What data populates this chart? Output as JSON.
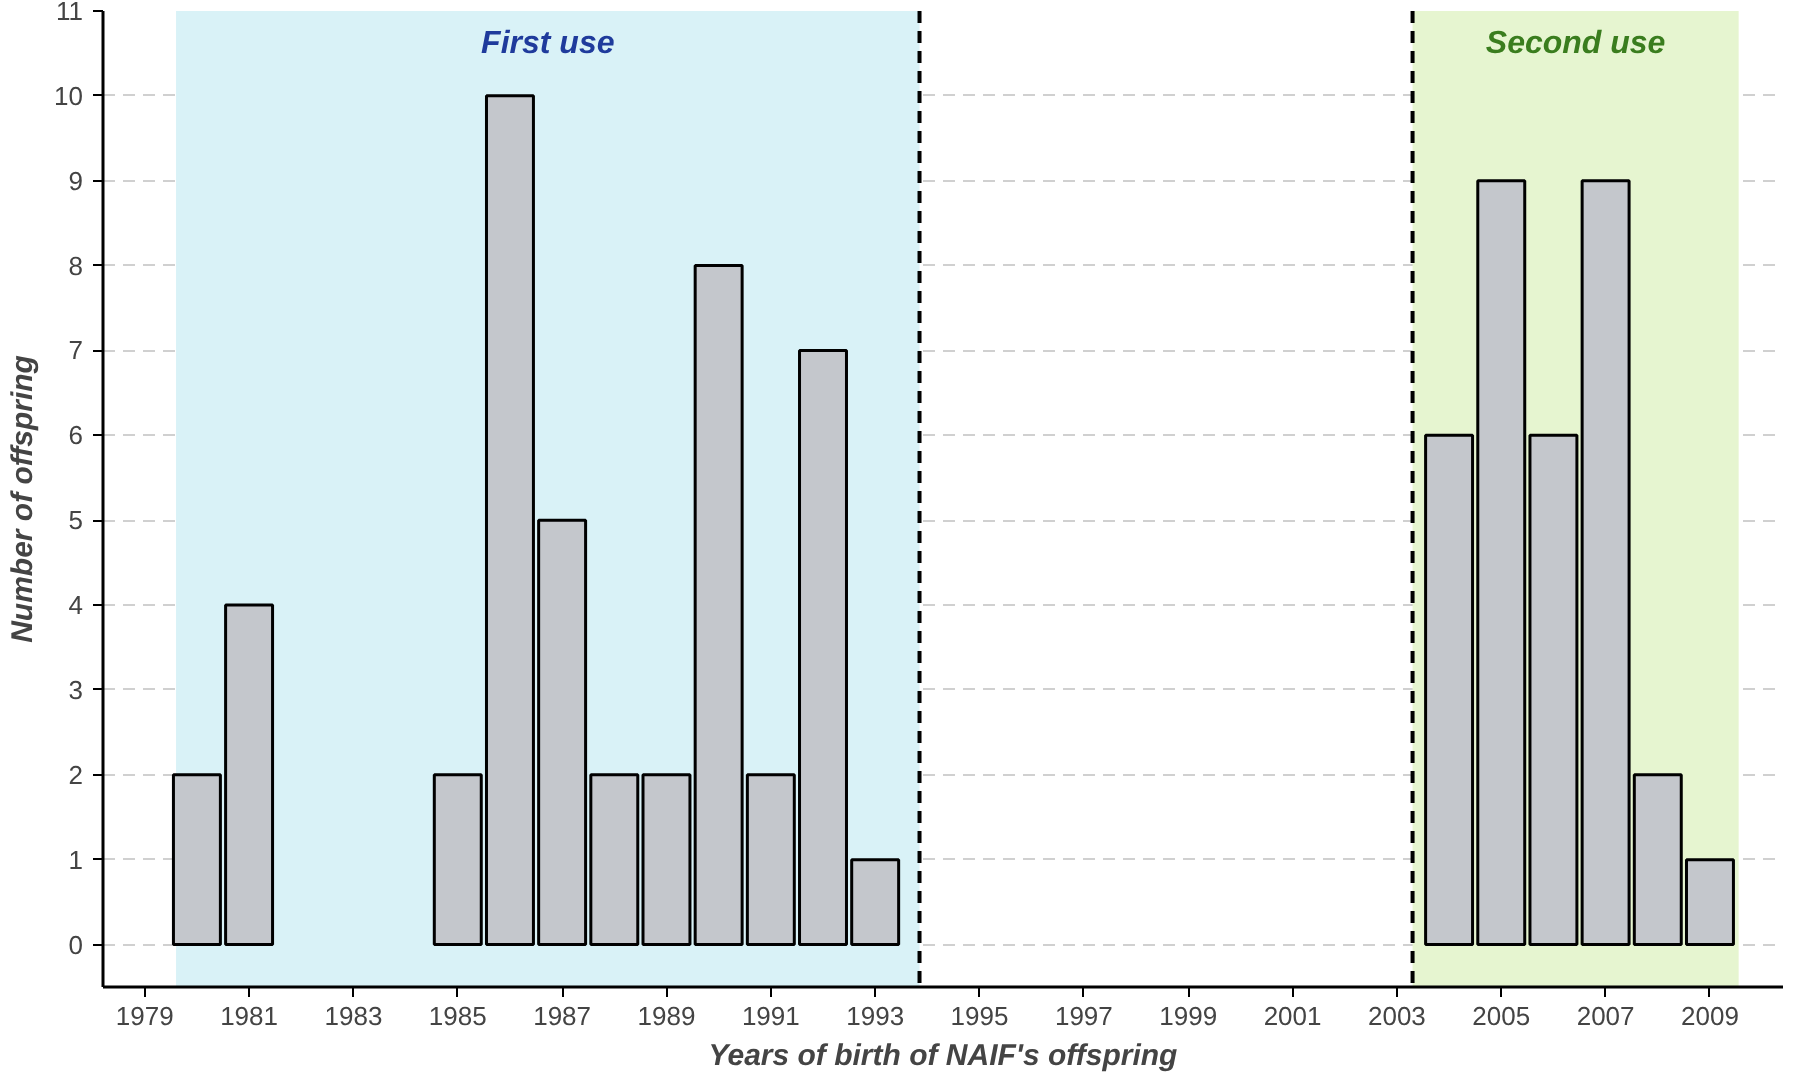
{
  "chart_data": {
    "type": "bar",
    "xlabel": "Years of birth of NAIF's offspring",
    "ylabel": "Number of offspring",
    "x": [
      1980,
      1981,
      1985,
      1986,
      1987,
      1988,
      1989,
      1990,
      1991,
      1992,
      1993,
      2004,
      2005,
      2006,
      2007,
      2008,
      2009
    ],
    "values": [
      2,
      4,
      2,
      10,
      5,
      2,
      2,
      8,
      2,
      7,
      1,
      6,
      9,
      6,
      9,
      2,
      1
    ],
    "color": "#c4c7cc",
    "xlim": [
      1978.2,
      2010.4
    ],
    "xticks": [
      1979,
      1981,
      1983,
      1985,
      1987,
      1989,
      1991,
      1993,
      1995,
      1997,
      1999,
      2001,
      2003,
      2005,
      2007,
      2009
    ],
    "ylim": [
      -0.5,
      11
    ],
    "yticks": [
      0,
      1,
      2,
      3,
      4,
      5,
      6,
      7,
      8,
      9,
      10,
      11
    ],
    "grid": "y",
    "bands": [
      {
        "axis": "x",
        "from": 1979.6,
        "to": 1993.85,
        "label": "First use",
        "color": "#d9f2f7"
      },
      {
        "axis": "x",
        "from": 2003.3,
        "to": 2009.55,
        "label": "Second use",
        "color": "#e6f5d0"
      }
    ],
    "ref_lines": [
      {
        "axis": "x",
        "value": 1993.85,
        "line_style": "dashed"
      },
      {
        "axis": "x",
        "value": 2003.3,
        "line_style": "dashed"
      }
    ]
  }
}
